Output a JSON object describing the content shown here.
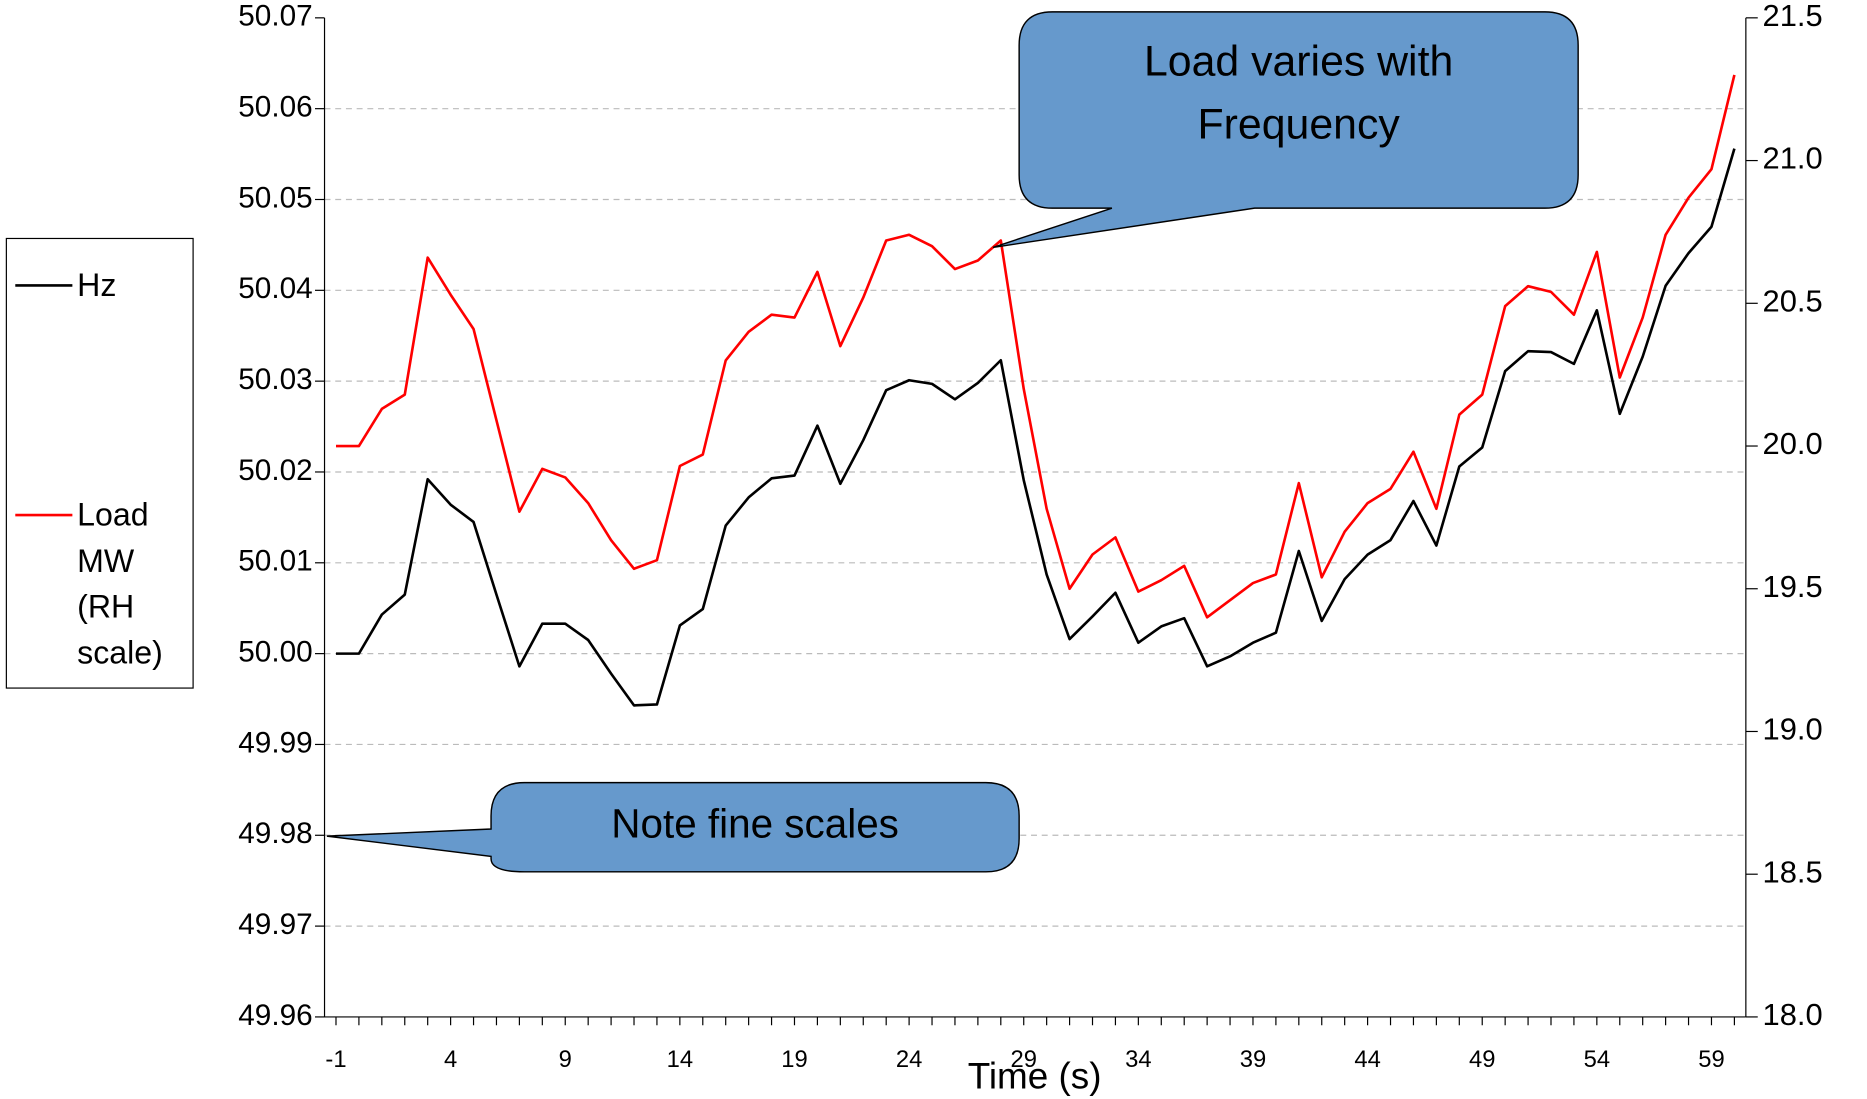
{
  "chart_data": {
    "type": "line",
    "x_label": "Time (s)",
    "categories": [
      "-1",
      null,
      null,
      null,
      null,
      "4",
      null,
      null,
      null,
      null,
      "9",
      null,
      null,
      null,
      null,
      "14",
      null,
      null,
      null,
      null,
      "19",
      null,
      null,
      null,
      null,
      "24",
      null,
      null,
      null,
      null,
      "29",
      null,
      null,
      null,
      null,
      "34",
      null,
      null,
      null,
      null,
      "39",
      null,
      null,
      null,
      null,
      "44",
      null,
      null,
      null,
      null,
      "49",
      null,
      null,
      null,
      null,
      "54",
      null,
      null,
      null,
      null,
      "59",
      null
    ],
    "series": [
      {
        "name": "Hz",
        "color": "#000000",
        "axis": "y",
        "values": [
          50.0,
          50.0,
          50.0043,
          50.0065,
          50.0192,
          50.0164,
          50.0145,
          50.0065,
          49.9986,
          50.0033,
          50.0033,
          50.0015,
          49.9978,
          49.9943,
          49.9944,
          50.0031,
          50.0049,
          50.0141,
          50.0172,
          50.0193,
          50.0196,
          50.0251,
          50.0187,
          50.0235,
          50.029,
          50.0301,
          50.0297,
          50.028,
          50.0298,
          50.0323,
          50.0191,
          50.0087,
          50.0016,
          50.0041,
          50.0067,
          50.0012,
          50.003,
          50.0039,
          49.9986,
          49.9997,
          50.0012,
          50.0023,
          50.0113,
          50.0036,
          50.0082,
          50.0109,
          50.0125,
          50.0168,
          50.0119,
          50.0206,
          50.0227,
          50.0311,
          50.0333,
          50.0332,
          50.0319,
          50.0378,
          50.0264,
          50.0327,
          50.0405,
          50.0441,
          50.047,
          50.0556
        ]
      },
      {
        "name": "Load MW (RH scale)",
        "color": "#ff0000",
        "axis": "y2",
        "values": [
          20.0,
          20.0,
          20.13,
          20.18,
          20.66,
          20.53,
          20.41,
          20.09,
          19.77,
          19.92,
          19.89,
          19.8,
          19.67,
          19.57,
          19.6,
          19.93,
          19.97,
          20.3,
          20.4,
          20.46,
          20.45,
          20.61,
          20.35,
          20.52,
          20.72,
          20.74,
          20.7,
          20.62,
          20.65,
          20.72,
          20.2,
          19.78,
          19.5,
          19.62,
          19.68,
          19.49,
          19.53,
          19.58,
          19.4,
          19.46,
          19.52,
          19.55,
          19.87,
          19.54,
          19.7,
          19.8,
          19.85,
          19.98,
          19.78,
          20.11,
          20.18,
          20.49,
          20.56,
          20.54,
          20.46,
          20.68,
          20.24,
          20.45,
          20.74,
          20.87,
          20.97,
          21.3
        ]
      }
    ],
    "ylim": [
      49.96,
      50.07
    ],
    "yticks": [
      49.96,
      49.97,
      49.98,
      49.99,
      {
        "value": 50,
        "label": "50.00"
      },
      50.01,
      50.02,
      50.03,
      50.04,
      50.05,
      50.06,
      50.07
    ],
    "y2lim": [
      18,
      21.5
    ],
    "y2ticks": [
      {
        "value": 18,
        "label": "18.0"
      },
      18.5,
      {
        "value": 19,
        "label": "19.0"
      },
      19.5,
      {
        "value": 20,
        "label": "20.0"
      },
      20.5,
      {
        "value": 21,
        "label": "21.0"
      },
      21.5
    ],
    "grid": true,
    "legend": "left",
    "annotations": [
      {
        "lines": [
          "Load varies with",
          "Frequency"
        ]
      },
      {
        "lines": [
          "Note fine scales"
        ]
      }
    ]
  }
}
